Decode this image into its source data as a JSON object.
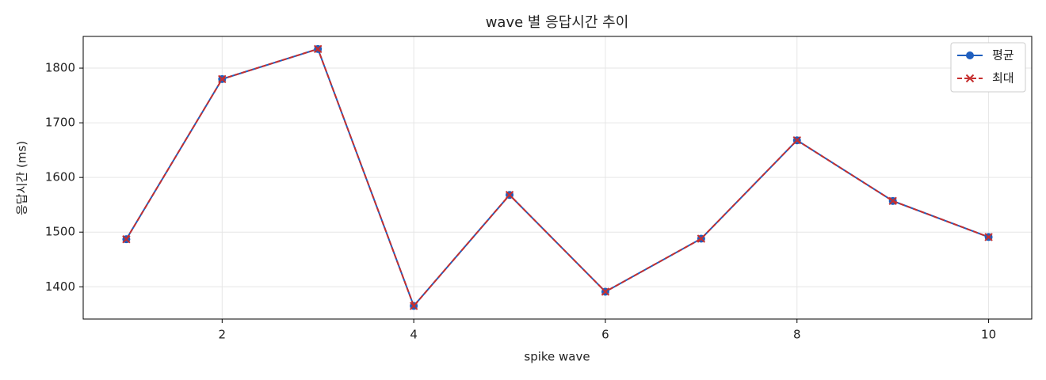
{
  "chart_data": {
    "type": "line",
    "title": "wave 별 응답시간 추이",
    "xlabel": "spike wave",
    "ylabel": "응답시간 (ms)",
    "x": [
      1,
      2,
      3,
      4,
      5,
      6,
      7,
      8,
      9,
      10
    ],
    "series": [
      {
        "name": "평균",
        "color": "#1f5fbf",
        "marker": "circle",
        "dash": false,
        "values": [
          1487,
          1780,
          1835,
          1365,
          1568,
          1391,
          1488,
          1668,
          1557,
          1491
        ]
      },
      {
        "name": "최대",
        "color": "#c62f2f",
        "marker": "x",
        "dash": true,
        "values": [
          1487,
          1780,
          1835,
          1365,
          1568,
          1391,
          1488,
          1668,
          1557,
          1491
        ]
      }
    ],
    "xlim": [
      0.55,
      10.45
    ],
    "xticks": [
      2,
      4,
      6,
      8,
      10
    ],
    "ylim": [
      1341,
      1858
    ],
    "yticks": [
      1400,
      1500,
      1600,
      1700,
      1800
    ],
    "grid": true,
    "legend": "upper right"
  }
}
